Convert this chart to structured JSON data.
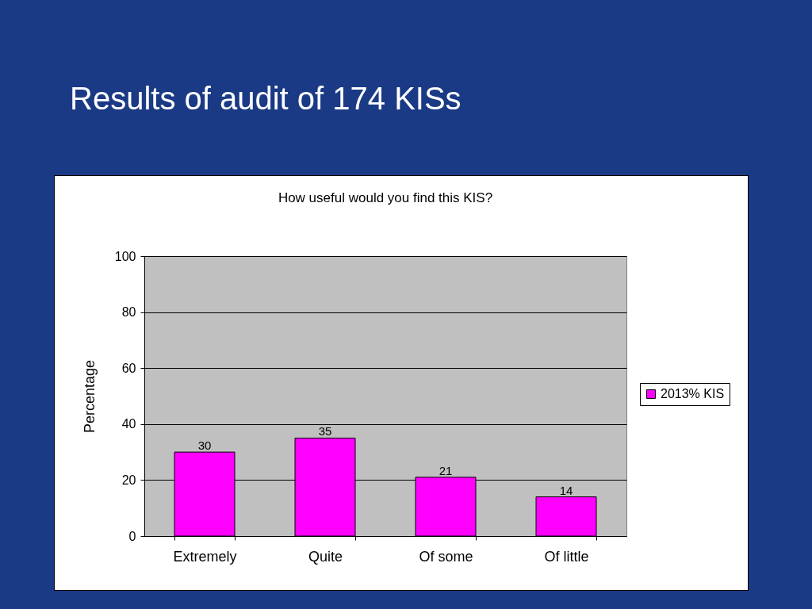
{
  "chart_data": {
    "type": "bar",
    "title": "Results of audit of 174 KISs",
    "subtitle": "How useful would you find this KIS?",
    "ylabel": "Percentage",
    "categories": [
      "Extremely",
      "Quite",
      "Of some",
      "Of little"
    ],
    "series": [
      {
        "name": "2013% KIS",
        "color": "#ff00ff",
        "values": [
          30,
          35,
          21,
          14
        ]
      }
    ],
    "ylim": [
      0,
      100
    ],
    "yticks": [
      0,
      20,
      40,
      60,
      80,
      100
    ],
    "grid": "y",
    "legend": "right",
    "data_labels": true
  }
}
